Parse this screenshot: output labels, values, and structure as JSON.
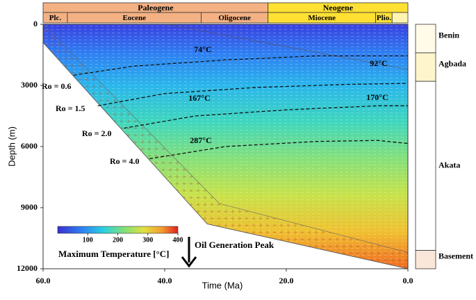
{
  "chart_data": {
    "type": "burial-history",
    "x_label": "Time (Ma)",
    "y_label": "Depth (m)",
    "xlim": [
      60,
      0
    ],
    "ylim": [
      0,
      12000
    ],
    "xticks": [
      {
        "value": 60,
        "label": "60.0"
      },
      {
        "value": 40,
        "label": "40.0"
      },
      {
        "value": 20,
        "label": "20.0"
      },
      {
        "value": 0,
        "label": "0.0"
      }
    ],
    "yticks": [
      0,
      3000,
      6000,
      9000,
      12000
    ],
    "periods": [
      {
        "label": "Paleogene",
        "start": 60,
        "end": 23
      },
      {
        "label": "Neogene",
        "start": 23,
        "end": 0
      }
    ],
    "epochs": [
      {
        "label": "Plc.",
        "start": 60,
        "end": 56
      },
      {
        "label": "Eocene",
        "start": 56,
        "end": 34
      },
      {
        "label": "Oligocene",
        "start": 34,
        "end": 23
      },
      {
        "label": "Miocene",
        "start": 23,
        "end": 5.3
      },
      {
        "label": "Plio.",
        "start": 5.3,
        "end": 2.6
      }
    ],
    "model_base": {
      "x": [
        60,
        33,
        0
      ],
      "y": [
        900,
        9800,
        12000
      ]
    },
    "basement_top": {
      "x": [
        60,
        31,
        0
      ],
      "y": [
        0,
        8800,
        11200
      ]
    },
    "ro_lines": [
      {
        "label": "Ro = 0.6",
        "x": [
          55,
          45,
          30,
          15,
          0
        ],
        "y": [
          2500,
          2050,
          1750,
          1550,
          1550
        ]
      },
      {
        "label": "Ro = 1.5",
        "x": [
          51,
          40,
          25,
          10,
          0
        ],
        "y": [
          4000,
          3400,
          3100,
          2950,
          2900
        ]
      },
      {
        "label": "Ro = 2.0",
        "x": [
          46.7,
          35,
          20,
          5,
          0
        ],
        "y": [
          5100,
          4500,
          4200,
          4000,
          4000
        ]
      },
      {
        "label": "Ro = 4.0",
        "x": [
          42.5,
          30,
          15,
          5,
          0
        ],
        "y": [
          6600,
          6000,
          5750,
          5700,
          5850
        ]
      }
    ],
    "temperature_labels": [
      "74°C",
      "92°C",
      "167°C",
      "170°C",
      "287°C"
    ],
    "colorbar": {
      "title": "Maximum Temperature [°C]",
      "lim": [
        0,
        400
      ],
      "ticks": [
        100,
        200,
        300,
        400
      ]
    },
    "annotation": "Oil Generation Peak",
    "lithology": [
      {
        "label": "Benin",
        "top": 0,
        "bottom": 1400,
        "color": "#fffbe8"
      },
      {
        "label": "Agbada",
        "top": 1400,
        "bottom": 2800,
        "color": "#fff5cc"
      },
      {
        "label": "Akata",
        "top": 2800,
        "bottom": 11100,
        "color": "#ffffff"
      },
      {
        "label": "Basement",
        "top": 11100,
        "bottom": 12000,
        "color": "#fbe6da"
      }
    ]
  }
}
